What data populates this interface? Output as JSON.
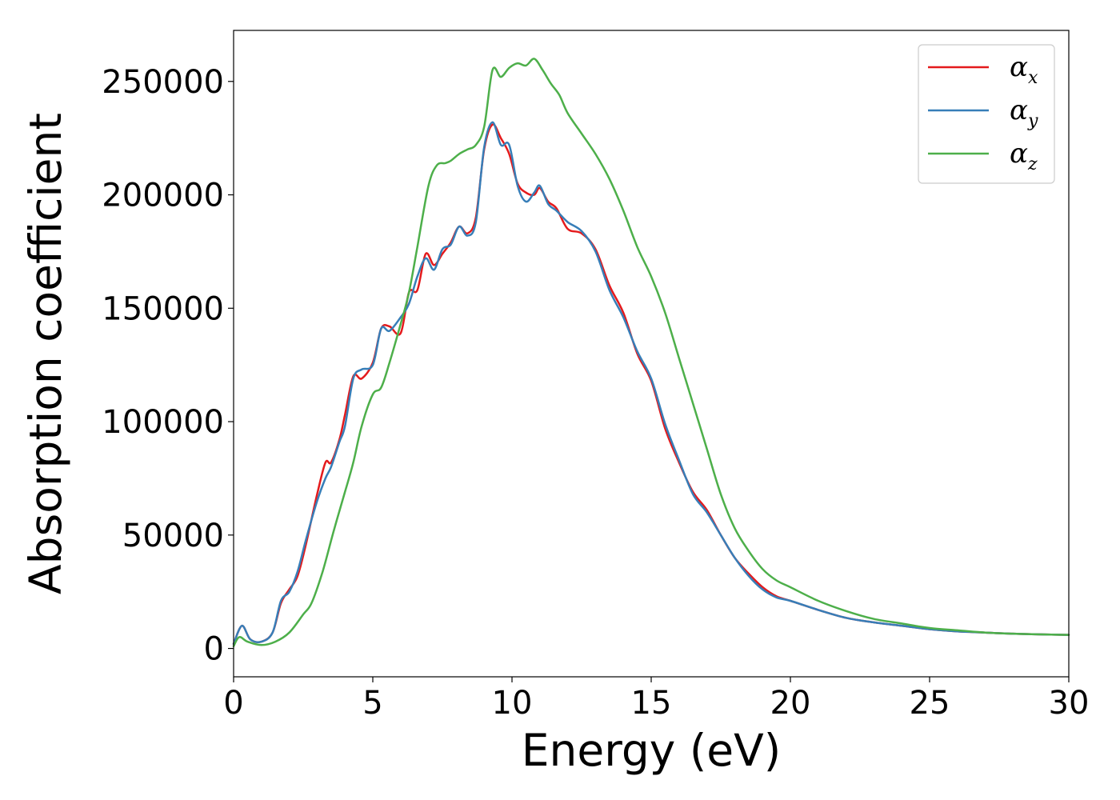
{
  "chart_data": {
    "type": "line",
    "xlabel": "Energy (eV)",
    "ylabel": "Absorption coefficient",
    "xlim": [
      0,
      30
    ],
    "ylim": [
      -12500,
      272500
    ],
    "xticks": [
      0,
      5,
      10,
      15,
      20,
      25,
      30
    ],
    "xtick_labels": [
      "0",
      "5",
      "10",
      "15",
      "20",
      "25",
      "30"
    ],
    "yticks": [
      0,
      50000,
      100000,
      150000,
      200000,
      250000
    ],
    "ytick_labels": [
      "0",
      "50000",
      "100000",
      "150000",
      "200000",
      "250000"
    ],
    "grid": false,
    "legend_position": "top-right",
    "series": [
      {
        "name": "α_x",
        "symbol": "α",
        "subscript": "x",
        "color": "#e41a1c",
        "x": [
          0,
          0.3,
          0.6,
          1.0,
          1.4,
          1.7,
          2.0,
          2.3,
          2.6,
          3.0,
          3.3,
          3.5,
          3.8,
          4.0,
          4.3,
          4.6,
          5.0,
          5.3,
          5.6,
          6.0,
          6.3,
          6.6,
          6.9,
          7.2,
          7.5,
          7.8,
          8.1,
          8.4,
          8.7,
          9.0,
          9.3,
          9.6,
          9.9,
          10.2,
          10.5,
          10.8,
          11.0,
          11.3,
          11.6,
          12.0,
          12.5,
          13.0,
          13.5,
          14.0,
          14.5,
          15.0,
          15.5,
          16.0,
          16.5,
          17.0,
          17.5,
          18.0,
          18.5,
          19.0,
          19.5,
          20.0,
          21.0,
          22.0,
          23.0,
          24.0,
          25.0,
          26.0,
          27.0,
          28.0,
          29.0,
          30.0
        ],
        "y": [
          2000,
          10000,
          4000,
          3000,
          7000,
          20000,
          26000,
          32000,
          46000,
          68000,
          82000,
          82000,
          92000,
          103000,
          120000,
          119000,
          126000,
          141000,
          142000,
          139000,
          157000,
          158000,
          174000,
          169000,
          174000,
          179000,
          186000,
          183000,
          190000,
          220000,
          231000,
          225000,
          218000,
          205000,
          201000,
          200000,
          203000,
          197000,
          194000,
          185000,
          183000,
          176000,
          160000,
          148000,
          130000,
          118000,
          97000,
          82000,
          69000,
          61000,
          50000,
          40000,
          33000,
          27000,
          23000,
          21000,
          17000,
          13500,
          11500,
          10000,
          8500,
          7500,
          7000,
          6500,
          6200,
          6000
        ]
      },
      {
        "name": "α_y",
        "symbol": "α",
        "subscript": "y",
        "color": "#377eb8",
        "x": [
          0,
          0.3,
          0.6,
          1.0,
          1.4,
          1.7,
          2.0,
          2.3,
          2.6,
          3.0,
          3.3,
          3.5,
          3.8,
          4.0,
          4.3,
          4.6,
          5.0,
          5.3,
          5.6,
          6.0,
          6.3,
          6.6,
          6.9,
          7.2,
          7.5,
          7.8,
          8.1,
          8.4,
          8.7,
          9.0,
          9.3,
          9.6,
          9.9,
          10.2,
          10.5,
          10.8,
          11.0,
          11.3,
          11.6,
          12.0,
          12.5,
          13.0,
          13.5,
          14.0,
          14.5,
          15.0,
          15.5,
          16.0,
          16.5,
          17.0,
          17.5,
          18.0,
          18.5,
          19.0,
          19.5,
          20.0,
          21.0,
          22.0,
          23.0,
          24.0,
          25.0,
          26.0,
          27.0,
          28.0,
          29.0,
          30.0
        ],
        "y": [
          2000,
          10000,
          4000,
          3000,
          7000,
          21000,
          25000,
          34000,
          48000,
          65000,
          75000,
          80000,
          91000,
          98000,
          119000,
          123000,
          125000,
          141000,
          140000,
          146000,
          152000,
          164000,
          172000,
          167000,
          176000,
          178000,
          186000,
          182000,
          188000,
          221000,
          232000,
          222000,
          222000,
          204000,
          197000,
          201000,
          204000,
          196000,
          193000,
          188000,
          184000,
          175000,
          158000,
          146000,
          131000,
          119000,
          99000,
          83000,
          68000,
          60000,
          50000,
          40000,
          32000,
          26000,
          22500,
          21000,
          17000,
          13500,
          11500,
          10000,
          8500,
          7500,
          7000,
          6500,
          6200,
          6000
        ]
      },
      {
        "name": "α_z",
        "symbol": "α",
        "subscript": "z",
        "color": "#4daf4a",
        "x": [
          0,
          0.2,
          0.5,
          1.0,
          1.5,
          2.0,
          2.5,
          2.8,
          3.2,
          3.6,
          4.0,
          4.3,
          4.6,
          5.0,
          5.3,
          5.6,
          6.0,
          6.3,
          6.6,
          7.0,
          7.3,
          7.6,
          7.8,
          8.1,
          8.4,
          8.7,
          9.0,
          9.3,
          9.6,
          9.9,
          10.2,
          10.5,
          10.8,
          11.1,
          11.4,
          11.7,
          12.0,
          12.5,
          13.0,
          13.5,
          14.0,
          14.5,
          15.0,
          15.5,
          16.0,
          16.5,
          17.0,
          17.5,
          18.0,
          18.5,
          19.0,
          19.5,
          20.0,
          21.0,
          22.0,
          23.0,
          24.0,
          25.0,
          26.0,
          27.0,
          28.0,
          29.0,
          30.0
        ],
        "y": [
          1000,
          5000,
          3000,
          1500,
          3000,
          7000,
          15000,
          20000,
          34000,
          52000,
          69000,
          82000,
          98000,
          112000,
          115000,
          126000,
          143000,
          157000,
          177000,
          204000,
          213000,
          214000,
          215000,
          218000,
          220000,
          222000,
          230000,
          255000,
          252000,
          256000,
          258000,
          257000,
          260000,
          255000,
          249000,
          244000,
          236000,
          227000,
          218000,
          207000,
          193000,
          177000,
          164000,
          148000,
          128000,
          108000,
          88000,
          68000,
          53000,
          43000,
          35000,
          30000,
          27000,
          21000,
          16500,
          13000,
          11000,
          9000,
          8000,
          7000,
          6500,
          6200,
          6000
        ]
      }
    ]
  }
}
